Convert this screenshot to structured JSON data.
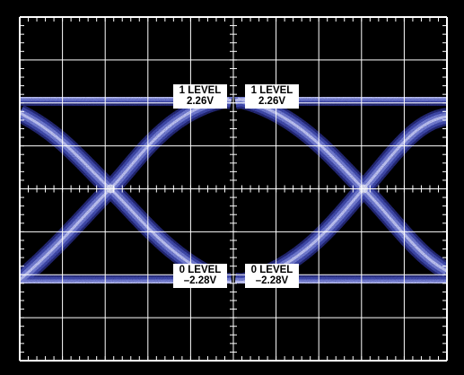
{
  "display": {
    "background_color": "#000000",
    "grid_color": "#ffffff",
    "trace_colors": [
      "#2a2f8a",
      "#4650b8",
      "#7d87e0",
      "#c8ccff"
    ],
    "grid_divisions": {
      "horizontal": 10,
      "vertical": 8
    }
  },
  "labels": {
    "top_left": {
      "line1": "1 LEVEL",
      "line2": "2.26V"
    },
    "top_right": {
      "line1": "1 LEVEL",
      "line2": "2.26V"
    },
    "bottom_left": {
      "line1": "0 LEVEL",
      "line2": "–2.28V"
    },
    "bottom_right": {
      "line1": "0 LEVEL",
      "line2": "–2.28V"
    }
  },
  "eye": {
    "one_level_volts": 2.26,
    "zero_level_volts": -2.28
  }
}
